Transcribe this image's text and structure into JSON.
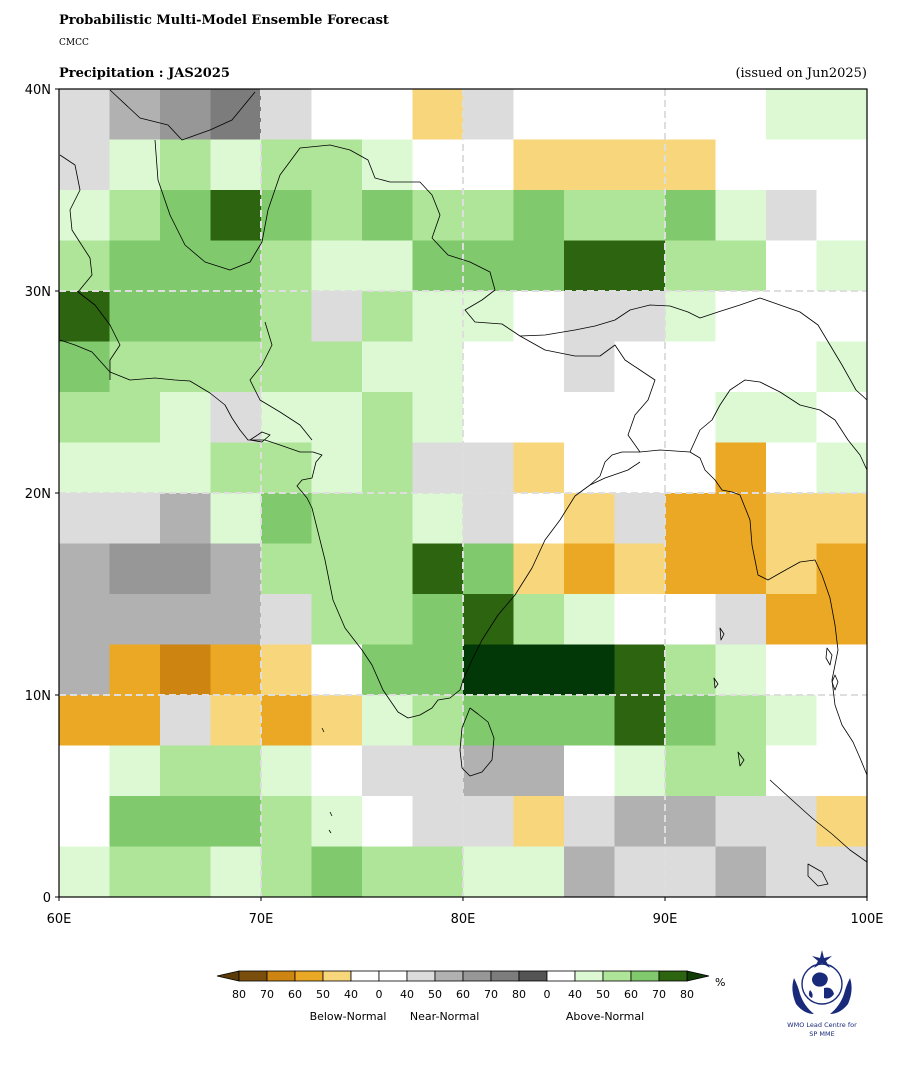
{
  "header": {
    "title": "Probabilistic Multi-Model Ensemble Forecast",
    "model": "CMCC",
    "subtitle": "Precipitation : JAS2025",
    "issued": "(issued on Jun2025)"
  },
  "map": {
    "lon_range": [
      60,
      100
    ],
    "lat_range": [
      0,
      40
    ],
    "cell_size_deg": 2.5,
    "x_ticks": [
      "60E",
      "70E",
      "80E",
      "90E",
      "100E"
    ],
    "y_ticks": [
      "0",
      "10N",
      "20N",
      "30N",
      "40N"
    ],
    "gridlines": true,
    "cell_colors": {
      "W": "#ffffff",
      "A1": "#dcf9d4",
      "A2": "#aee598",
      "A3": "#80c96d",
      "A4": "#2d6410",
      "A5": "#023807",
      "N1": "#dcdcdc",
      "N2": "#b0b1b0",
      "N3": "#979797",
      "N4": "#7c7c7c",
      "B1": "#f8d67b",
      "B2": "#eba825",
      "B3": "#cd8410"
    },
    "grid_rows_north_to_south": [
      [
        "N1",
        "N2",
        "N3",
        "N4",
        "N1",
        "W",
        "W",
        "B1",
        "N1",
        "W",
        "W",
        "W",
        "W",
        "W",
        "A1",
        "A1"
      ],
      [
        "N1",
        "A1",
        "A2",
        "A1",
        "A2",
        "A2",
        "A1",
        "W",
        "W",
        "B1",
        "B1",
        "B1",
        "B1",
        "W",
        "W",
        "W"
      ],
      [
        "A1",
        "A2",
        "A3",
        "A4",
        "A3",
        "A2",
        "A3",
        "A2",
        "A2",
        "A3",
        "A2",
        "A2",
        "A3",
        "A1",
        "N1",
        "W"
      ],
      [
        "A2",
        "A3",
        "A3",
        "A3",
        "A2",
        "A1",
        "A1",
        "A3",
        "A3",
        "A3",
        "A4",
        "A4",
        "A2",
        "A2",
        "W",
        "A1"
      ],
      [
        "A4",
        "A3",
        "A3",
        "A3",
        "A2",
        "N1",
        "A2",
        "A1",
        "A1",
        "W",
        "N1",
        "N1",
        "A1",
        "W",
        "W",
        "W"
      ],
      [
        "A3",
        "A2",
        "A2",
        "A2",
        "A2",
        "A2",
        "A1",
        "A1",
        "W",
        "W",
        "N1",
        "W",
        "W",
        "W",
        "W",
        "A1"
      ],
      [
        "A2",
        "A2",
        "A1",
        "N1",
        "A1",
        "A1",
        "A2",
        "A1",
        "W",
        "W",
        "W",
        "W",
        "W",
        "A1",
        "A1",
        "W"
      ],
      [
        "A1",
        "A1",
        "A1",
        "A2",
        "A2",
        "A1",
        "A2",
        "N1",
        "N1",
        "B1",
        "W",
        "W",
        "W",
        "B2",
        "W",
        "A1"
      ],
      [
        "N1",
        "N1",
        "N2",
        "A1",
        "A3",
        "A2",
        "A2",
        "A1",
        "N1",
        "W",
        "B1",
        "N1",
        "B2",
        "B2",
        "B1",
        "B1"
      ],
      [
        "N2",
        "N3",
        "N3",
        "N2",
        "A2",
        "A2",
        "A2",
        "A4",
        "A3",
        "B1",
        "B2",
        "B1",
        "B2",
        "B2",
        "B1",
        "B2"
      ],
      [
        "N2",
        "N2",
        "N2",
        "N2",
        "N1",
        "A2",
        "A2",
        "A3",
        "A4",
        "A2",
        "A1",
        "W",
        "W",
        "N1",
        "B2",
        "B2"
      ],
      [
        "N2",
        "B2",
        "B3",
        "B2",
        "B1",
        "W",
        "A3",
        "A3",
        "A5",
        "A5",
        "A5",
        "A4",
        "A2",
        "A1",
        "W",
        "W"
      ],
      [
        "B2",
        "B2",
        "N1",
        "B1",
        "B2",
        "B1",
        "A1",
        "A2",
        "A3",
        "A3",
        "A3",
        "A4",
        "A3",
        "A2",
        "A1",
        "W"
      ],
      [
        "W",
        "A1",
        "A2",
        "A2",
        "A1",
        "W",
        "N1",
        "N1",
        "N2",
        "N2",
        "W",
        "A1",
        "A2",
        "A2",
        "W",
        "W"
      ],
      [
        "W",
        "A3",
        "A3",
        "A3",
        "A2",
        "A1",
        "W",
        "N1",
        "N1",
        "B1",
        "N1",
        "N2",
        "N2",
        "N1",
        "N1",
        "B1"
      ],
      [
        "A1",
        "A2",
        "A2",
        "A1",
        "A2",
        "A3",
        "A2",
        "A2",
        "A1",
        "A1",
        "N2",
        "N1",
        "N1",
        "N2",
        "N1",
        "N1"
      ]
    ]
  },
  "legend": {
    "unit": "%",
    "swatch_colors": [
      "#7a4f0e",
      "#cd8410",
      "#eba825",
      "#f8d67b",
      "#ffffff",
      "#ffffff",
      "#dcdcdc",
      "#b0b1b0",
      "#979797",
      "#7c7c7c",
      "#545454",
      "#ffffff",
      "#dcf9d4",
      "#aee598",
      "#80c96d",
      "#2d6410"
    ],
    "arrow_left_color": "#5c3c06",
    "arrow_right_color": "#123c05",
    "tick_labels": [
      "80",
      "70",
      "60",
      "50",
      "40",
      "0",
      "40",
      "50",
      "60",
      "70",
      "80",
      "0",
      "40",
      "50",
      "60",
      "70",
      "80"
    ],
    "group_labels": [
      "Below-Normal",
      "Near-Normal",
      "Above-Normal"
    ]
  },
  "logo": {
    "text_line1": "WMO Lead Centre for",
    "text_line2": "SP MME"
  }
}
